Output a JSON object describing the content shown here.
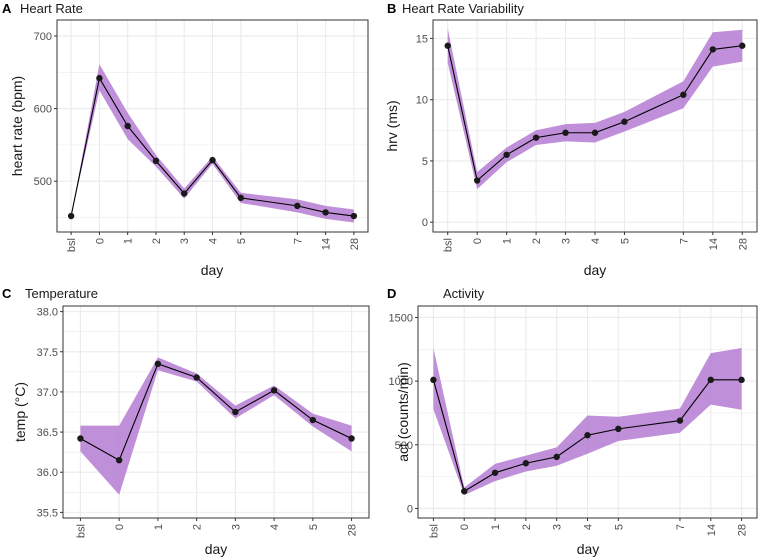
{
  "figure": {
    "ribbon_color": "#b57bd2",
    "line_color": "#000000",
    "point_color": "#1a1a1a",
    "grid_color": "#ebebeb",
    "panel_border_color": "#333333"
  },
  "chart_data": [
    {
      "letter": "A",
      "title": "Heart Rate",
      "type": "line",
      "xlabel": "day",
      "ylabel": "heart rate (bpm)",
      "categories": [
        "bsl",
        "0",
        "1",
        "2",
        "3",
        "4",
        "5",
        "7",
        "14",
        "28"
      ],
      "x_positions": [
        -1,
        0,
        1,
        2,
        3,
        4,
        5,
        7,
        8,
        9
      ],
      "values": [
        452,
        642,
        576,
        528,
        483,
        529,
        477,
        466,
        457,
        452
      ],
      "lower": [
        452,
        625,
        558,
        520,
        476,
        524,
        470,
        457,
        448,
        443
      ],
      "upper": [
        452,
        661,
        594,
        536,
        490,
        534,
        484,
        475,
        466,
        461
      ],
      "ylim": [
        430,
        722
      ],
      "yticks": [
        500,
        600,
        700
      ]
    },
    {
      "letter": "B",
      "title": "Heart Rate Variability",
      "type": "line",
      "xlabel": "day",
      "ylabel": "hrv (ms)",
      "categories": [
        "bsl",
        "0",
        "1",
        "2",
        "3",
        "4",
        "5",
        "7",
        "14",
        "28"
      ],
      "x_positions": [
        -1,
        0,
        1,
        2,
        3,
        4,
        5,
        7,
        8,
        9
      ],
      "values": [
        14.4,
        3.4,
        5.5,
        6.9,
        7.3,
        7.3,
        8.2,
        10.4,
        14.1,
        14.4
      ],
      "lower": [
        13.0,
        2.7,
        4.9,
        6.3,
        6.6,
        6.5,
        7.4,
        9.3,
        12.7,
        13.1
      ],
      "upper": [
        15.8,
        4.1,
        6.1,
        7.5,
        8.0,
        8.1,
        9.0,
        11.5,
        15.5,
        15.7
      ],
      "ylim": [
        -0.8,
        16.5
      ],
      "yticks": [
        0,
        5,
        10,
        15
      ]
    },
    {
      "letter": "C",
      "title": "Temperature",
      "type": "line",
      "xlabel": "day",
      "ylabel": "temp (°C)",
      "categories": [
        "bsl",
        "0",
        "1",
        "2",
        "3",
        "4",
        "5",
        "28"
      ],
      "x_positions": [
        0,
        1,
        2,
        3,
        4,
        5,
        6,
        7
      ],
      "values": [
        36.42,
        36.15,
        37.35,
        37.18,
        36.75,
        37.02,
        36.65,
        36.42
      ],
      "lower": [
        36.26,
        35.72,
        37.27,
        37.13,
        36.67,
        36.96,
        36.57,
        36.26
      ],
      "upper": [
        36.58,
        36.58,
        37.43,
        37.23,
        36.83,
        37.08,
        36.73,
        36.58
      ],
      "ylim": [
        35.43,
        38.07
      ],
      "yticks": [
        35.5,
        36.0,
        36.5,
        37.0,
        37.5,
        38.0
      ],
      "ytick_labels": [
        "35.5",
        "36.0",
        "36.5",
        "37.0",
        "37.5",
        "38.0"
      ]
    },
    {
      "letter": "D",
      "title": "Activity",
      "type": "line",
      "xlabel": "day",
      "ylabel": "act (counts/min)",
      "categories": [
        "bsl",
        "0",
        "1",
        "2",
        "3",
        "4",
        "5",
        "7",
        "14",
        "28"
      ],
      "x_positions": [
        -1,
        0,
        1,
        2,
        3,
        4,
        5,
        7,
        8,
        9
      ],
      "values": [
        1010,
        135,
        280,
        355,
        405,
        575,
        625,
        690,
        1010,
        1010
      ],
      "lower": [
        780,
        105,
        215,
        290,
        335,
        430,
        530,
        595,
        815,
        775
      ],
      "upper": [
        1260,
        165,
        350,
        415,
        480,
        730,
        720,
        785,
        1220,
        1260
      ],
      "ylim": [
        -75,
        1590
      ],
      "yticks": [
        0,
        500,
        1000,
        1500
      ]
    }
  ]
}
